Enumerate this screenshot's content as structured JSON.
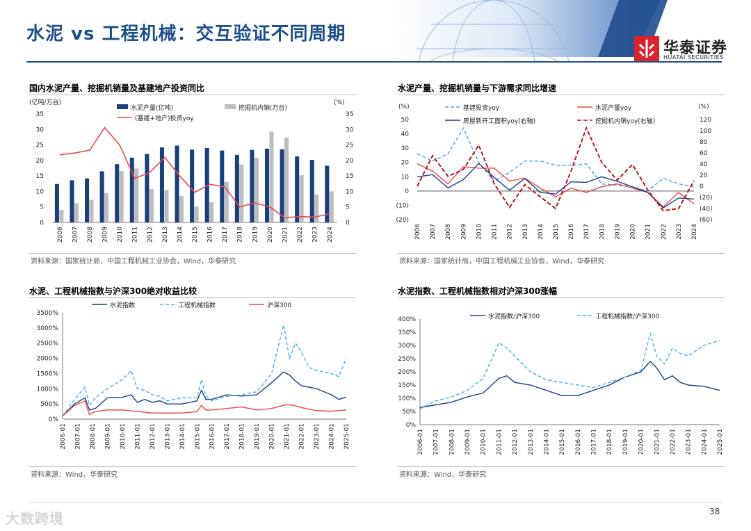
{
  "page": {
    "title": "水泥 vs 工程机械：交互验证不同周期",
    "logo_cn": "华泰证券",
    "logo_en": "HUATAI SECURITIES",
    "page_number": "38",
    "watermark": "大数跨境"
  },
  "chart_data": [
    {
      "type": "bar",
      "title": "国内水泥产量、挖掘机销量及基建地产投资同比",
      "source": "资料来源：国家统计局，中国工程机械工业协会，Wind，华泰研究",
      "left_unit": "(亿吨/万台)",
      "right_unit": "(%)",
      "categories": [
        "2006",
        "2007",
        "2008",
        "2009",
        "2010",
        "2011",
        "2012",
        "2013",
        "2014",
        "2015",
        "2016",
        "2017",
        "2018",
        "2019",
        "2020",
        "2021",
        "2022",
        "2023",
        "2024"
      ],
      "ylim_left": [
        0,
        35
      ],
      "ylim_right": [
        0,
        35
      ],
      "yticks_left": [
        "0",
        "5",
        "10",
        "15",
        "20",
        "25",
        "30",
        "35"
      ],
      "yticks_right": [
        "0",
        "5",
        "10",
        "15",
        "20",
        "25",
        "30",
        "35"
      ],
      "series": [
        {
          "name": "水泥产量(亿吨)",
          "kind": "bar",
          "color": "#1a3e7e",
          "values": [
            12.4,
            13.6,
            14.2,
            16.5,
            18.8,
            20.9,
            22.1,
            24.2,
            24.8,
            23.5,
            24.0,
            23.2,
            21.8,
            23.4,
            23.8,
            23.6,
            21.3,
            20.2,
            18.3
          ]
        },
        {
          "name": "挖掘机内销(万台)",
          "kind": "bar",
          "color": "#bdbdbd",
          "values": [
            4.0,
            6.2,
            7.3,
            9.5,
            16.6,
            17.4,
            10.8,
            10.5,
            8.5,
            5.1,
            6.5,
            13.1,
            18.7,
            20.9,
            29.3,
            27.4,
            15.2,
            9.0,
            10.0
          ]
        },
        {
          "name": "(基建+地产)投资yoy",
          "kind": "line",
          "color": "#e84a4a",
          "values": [
            21.8,
            22.4,
            23.3,
            30.6,
            25.0,
            14.2,
            16.1,
            21.0,
            15.0,
            9.7,
            12.3,
            11.5,
            5.0,
            6.3,
            5.0,
            1.5,
            1.9,
            1.7,
            2.8
          ]
        }
      ]
    },
    {
      "type": "line",
      "title": "水泥产量、挖掘机销量与下游需求同比增速",
      "source": "资料来源：国家统计局，中国工程机械工业协会，Wind，华泰研究",
      "left_unit": "(%)",
      "right_unit": "(%)",
      "categories": [
        "2006",
        "2007",
        "2008",
        "2009",
        "2010",
        "2011",
        "2012",
        "2013",
        "2014",
        "2015",
        "2016",
        "2017",
        "2018",
        "2019",
        "2020",
        "2021",
        "2022",
        "2023",
        "2024"
      ],
      "ylim_left": [
        -20,
        50
      ],
      "ylim_right": [
        -60,
        120
      ],
      "yticks_left": [
        "(20)",
        "(10)",
        "0",
        "10",
        "20",
        "30",
        "40",
        "50"
      ],
      "yticks_right": [
        "(60)",
        "(40)",
        "(20)",
        "0",
        "20",
        "40",
        "60",
        "80",
        "100",
        "120"
      ],
      "series": [
        {
          "name": "基建投资yoy",
          "axis": "left",
          "color": "#4aa3e0",
          "dash": "5,3",
          "values": [
            26,
            21,
            26,
            44,
            20,
            7,
            13,
            21,
            21,
            18,
            18,
            19,
            5,
            4,
            3,
            0,
            9,
            5,
            3
          ]
        },
        {
          "name": "水泥产量yoy",
          "axis": "left",
          "color": "#e84a4a",
          "dash": "",
          "values": [
            19,
            14,
            5,
            17,
            16,
            16,
            7,
            9,
            2,
            -4,
            2,
            -1,
            3,
            5,
            2,
            -1,
            -11,
            -1,
            -9
          ]
        },
        {
          "name": "房屋新开工面积yoy(右轴)",
          "axis": "right",
          "color": "#1a3e7e",
          "dash": "",
          "values": [
            17,
            21,
            -3,
            12,
            41,
            16,
            -7,
            14,
            -11,
            -14,
            8,
            7,
            17,
            9,
            -1,
            -11,
            -39,
            -21,
            -23
          ]
        },
        {
          "name": "挖掘机内销yoy(右轴)",
          "axis": "right",
          "color": "#b0161c",
          "dash": "6,3",
          "values": [
            0,
            55,
            18,
            30,
            74,
            5,
            -38,
            3,
            -19,
            -40,
            27,
            105,
            43,
            11,
            39,
            -7,
            -44,
            -40,
            10
          ]
        }
      ]
    },
    {
      "type": "line",
      "title": "水泥、工程机械指数与沪深300绝对收益比较",
      "source": "资料来源：Wind，华泰研究",
      "x_ticks": [
        "2006-01",
        "2007-01",
        "2008-01",
        "2009-01",
        "2010-01",
        "2011-01",
        "2012-01",
        "2013-01",
        "2014-01",
        "2015-01",
        "2016-01",
        "2017-01",
        "2018-01",
        "2019-01",
        "2020-01",
        "2021-01",
        "2022-01",
        "2023-01",
        "2024-01",
        "2025-01"
      ],
      "ylim": [
        0,
        3500
      ],
      "yticks": [
        "0%",
        "500%",
        "1000%",
        "1500%",
        "2000%",
        "2500%",
        "3000%",
        "3500%"
      ],
      "series": [
        {
          "name": "水泥指数",
          "color": "#1a3e7e",
          "dash": "",
          "x": [
            0,
            0.8,
            1.5,
            1.8,
            2.2,
            3.0,
            4.0,
            4.6,
            5.0,
            5.5,
            6.0,
            6.5,
            7.0,
            8.0,
            9.0,
            9.3,
            9.6,
            10.0,
            11.0,
            12.0,
            13.0,
            14.0,
            14.8,
            15.2,
            15.6,
            16.0,
            16.5,
            17.0,
            18.0,
            18.5,
            19.0
          ],
          "values": [
            100,
            500,
            700,
            300,
            350,
            700,
            720,
            800,
            550,
            650,
            550,
            600,
            500,
            500,
            600,
            950,
            650,
            650,
            800,
            760,
            800,
            1200,
            1550,
            1450,
            1250,
            1100,
            1050,
            1000,
            800,
            650,
            720
          ]
        },
        {
          "name": "工程机械指数",
          "color": "#4ab0e0",
          "dash": "5,3",
          "x": [
            0,
            0.8,
            1.5,
            1.8,
            2.2,
            3.0,
            4.0,
            4.6,
            5.0,
            5.5,
            6.0,
            6.5,
            7.0,
            8.0,
            9.0,
            9.3,
            9.6,
            10.0,
            11.0,
            12.0,
            13.0,
            14.0,
            14.8,
            15.2,
            15.6,
            16.0,
            16.5,
            17.0,
            18.0,
            18.5,
            19.0
          ],
          "values": [
            100,
            650,
            1050,
            450,
            700,
            1000,
            1300,
            1600,
            1000,
            950,
            800,
            750,
            600,
            700,
            700,
            1300,
            750,
            600,
            750,
            800,
            900,
            1500,
            3100,
            2000,
            2500,
            2200,
            1700,
            1600,
            1500,
            1400,
            2000
          ]
        },
        {
          "name": "沪深300",
          "color": "#e84a4a",
          "dash": "",
          "x": [
            0,
            0.8,
            1.5,
            1.8,
            2.2,
            3.0,
            4.0,
            5.0,
            6.0,
            7.0,
            8.0,
            9.0,
            9.3,
            9.6,
            10.0,
            11.0,
            12.0,
            13.0,
            14.0,
            15.0,
            15.5,
            16.0,
            17.0,
            18.0,
            19.0
          ],
          "values": [
            100,
            450,
            600,
            150,
            250,
            300,
            300,
            250,
            200,
            200,
            200,
            250,
            450,
            300,
            300,
            350,
            400,
            300,
            350,
            480,
            450,
            380,
            280,
            260,
            300
          ]
        }
      ]
    },
    {
      "type": "line",
      "title": "水泥指数、工程机械指数相对沪深300涨幅",
      "source": "资料来源：Wind，华泰研究",
      "x_ticks": [
        "2006-01",
        "2007-01",
        "2008-01",
        "2009-01",
        "2010-01",
        "2011-01",
        "2012-01",
        "2013-01",
        "2014-01",
        "2015-01",
        "2016-01",
        "2017-01",
        "2018-01",
        "2019-01",
        "2020-01",
        "2021-01",
        "2022-01",
        "2023-01",
        "2024-01",
        "2025-01"
      ],
      "ylim": [
        0,
        400
      ],
      "yticks": [
        "0%",
        "50%",
        "100%",
        "150%",
        "200%",
        "250%",
        "300%",
        "350%",
        "400%"
      ],
      "series": [
        {
          "name": "水泥指数/沪深300",
          "color": "#1a3e7e",
          "dash": "",
          "x": [
            0,
            1,
            2,
            3,
            4,
            5,
            5.5,
            6,
            7,
            8,
            9,
            10,
            11,
            12,
            13,
            14,
            14.6,
            15,
            15.5,
            16,
            16.5,
            17,
            18,
            19
          ],
          "values": [
            65,
            75,
            85,
            105,
            120,
            175,
            185,
            160,
            150,
            130,
            110,
            110,
            130,
            150,
            180,
            200,
            240,
            215,
            170,
            185,
            160,
            150,
            145,
            130
          ]
        },
        {
          "name": "工程机械指数/沪深300",
          "color": "#4ab0e0",
          "dash": "5,3",
          "x": [
            0,
            1,
            2,
            3,
            4,
            5,
            5.5,
            6,
            7,
            8,
            9,
            10,
            11,
            12,
            13,
            14,
            14.6,
            15,
            15.5,
            16,
            16.5,
            17,
            18,
            19
          ],
          "values": [
            60,
            90,
            105,
            130,
            175,
            310,
            290,
            260,
            200,
            170,
            160,
            150,
            140,
            160,
            180,
            205,
            345,
            260,
            230,
            290,
            270,
            260,
            300,
            320
          ]
        }
      ]
    }
  ]
}
